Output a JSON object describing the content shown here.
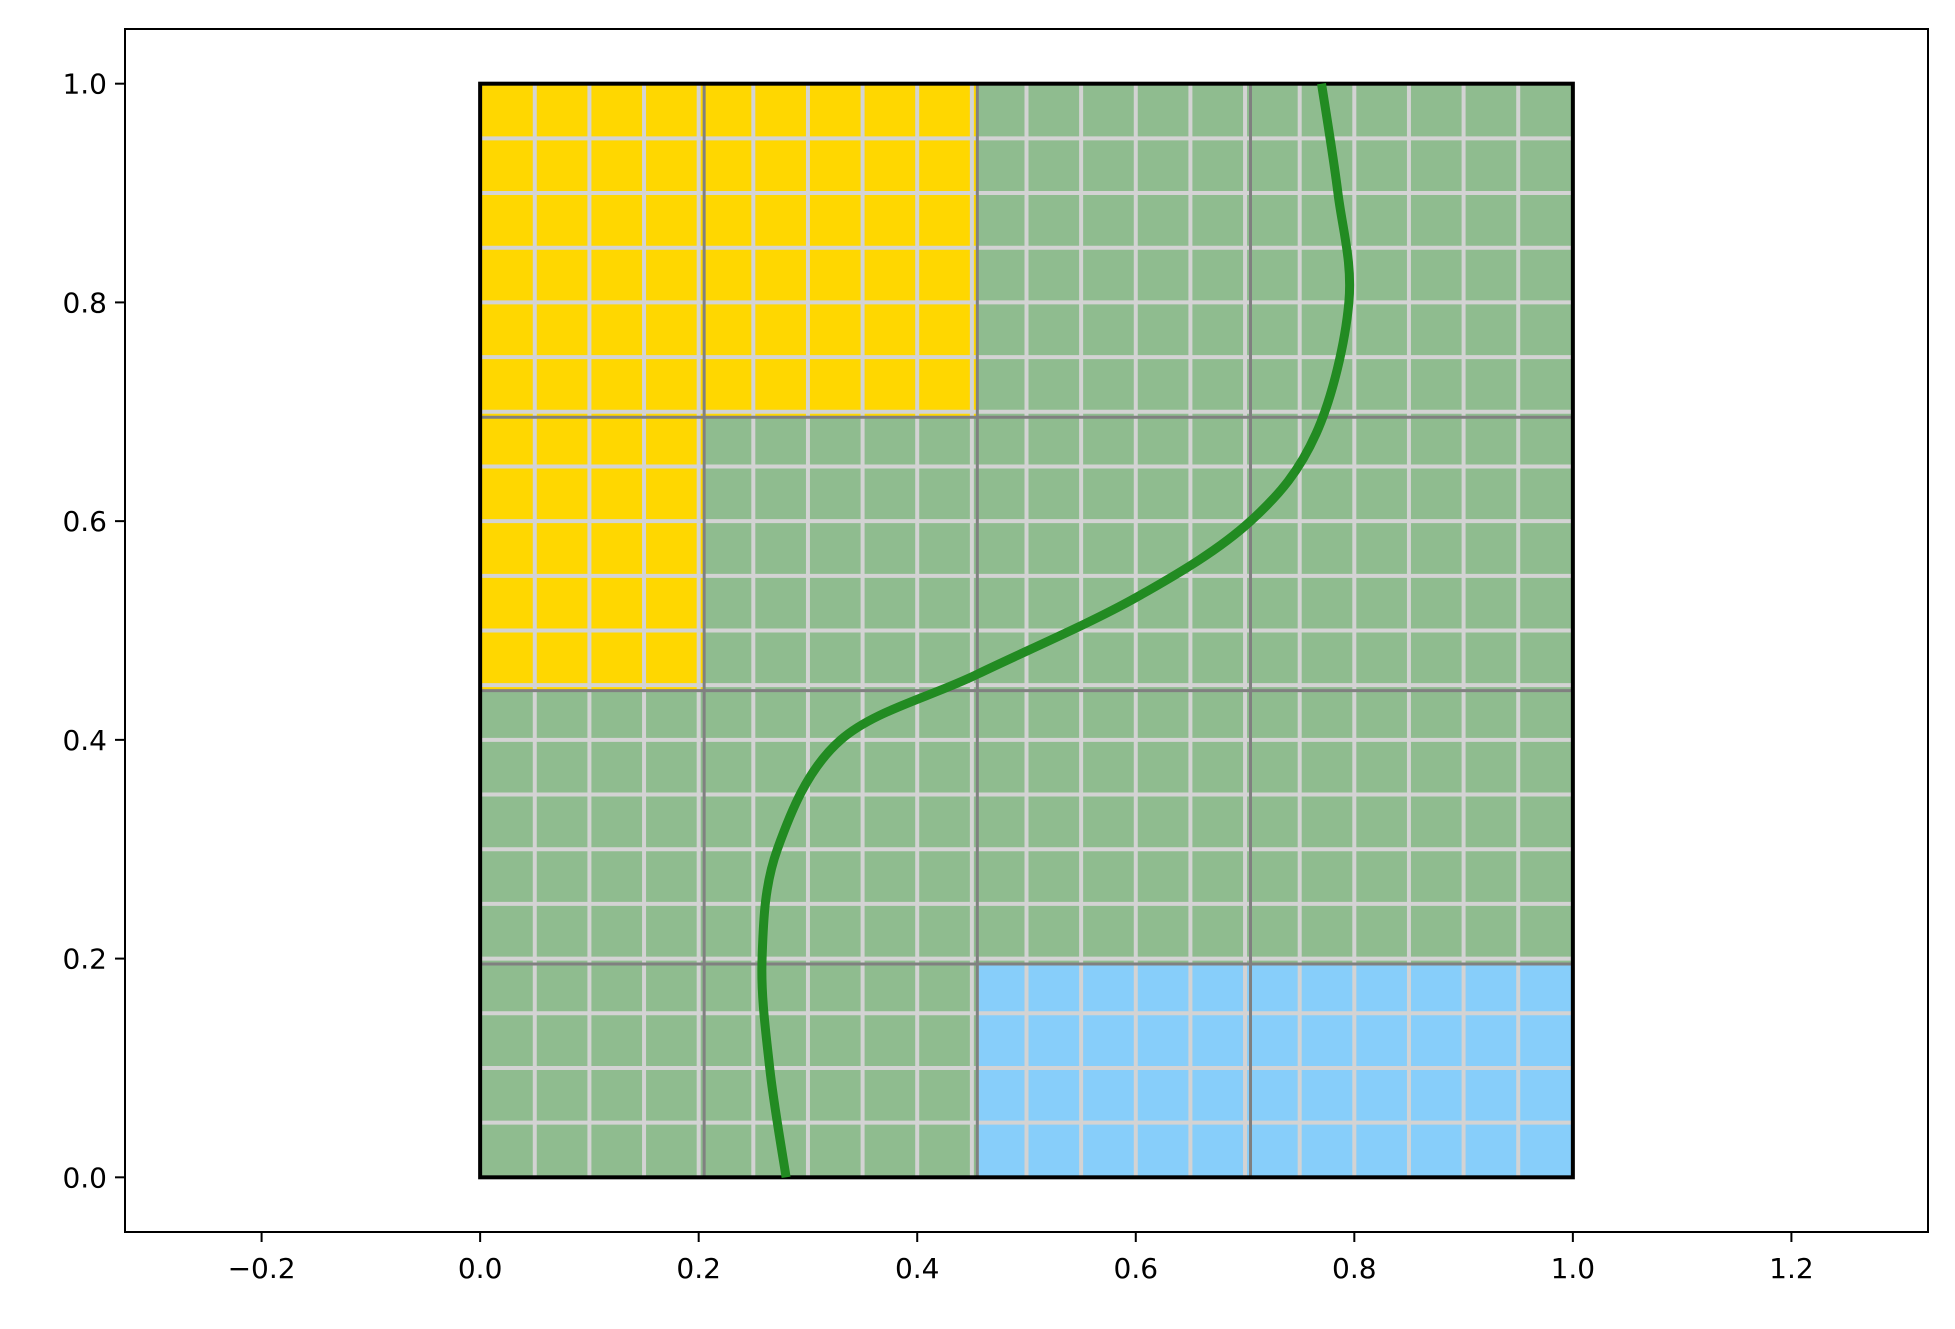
{
  "chart_data": {
    "type": "heatmap",
    "title": "",
    "xlabel": "",
    "ylabel": "",
    "xlim": [
      -0.325,
      1.325
    ],
    "ylim": [
      -0.05,
      1.05
    ],
    "x_ticks": [
      -0.2,
      0.0,
      0.2,
      0.4,
      0.6,
      0.8,
      1.0,
      1.2
    ],
    "x_tick_labels": [
      "−0.2",
      "0.0",
      "0.2",
      "0.4",
      "0.6",
      "0.8",
      "1.0",
      "1.2"
    ],
    "y_ticks": [
      0.0,
      0.2,
      0.4,
      0.6,
      0.8,
      1.0
    ],
    "y_tick_labels": [
      "0.0",
      "0.2",
      "0.4",
      "0.6",
      "0.8",
      "1.0"
    ],
    "grid": false,
    "domain": {
      "x": [
        0,
        1
      ],
      "y": [
        0,
        1
      ]
    },
    "coarse_x_edges": [
      0,
      0.205,
      0.455,
      0.705,
      1.0
    ],
    "coarse_y_edges": [
      0,
      0.195,
      0.445,
      0.695,
      1.0
    ],
    "fine_spacing": 0.05,
    "cells": [
      {
        "x": [
          0,
          0.205
        ],
        "y": [
          0,
          0.195
        ],
        "color": "#8fbc8f"
      },
      {
        "x": [
          0.205,
          0.455
        ],
        "y": [
          0,
          0.195
        ],
        "color": "#8fbc8f"
      },
      {
        "x": [
          0.455,
          0.705
        ],
        "y": [
          0,
          0.195
        ],
        "color": "#87cefa"
      },
      {
        "x": [
          0.705,
          1.0
        ],
        "y": [
          0,
          0.195
        ],
        "color": "#87cefa"
      },
      {
        "x": [
          0,
          0.205
        ],
        "y": [
          0.195,
          0.445
        ],
        "color": "#8fbc8f"
      },
      {
        "x": [
          0.205,
          0.455
        ],
        "y": [
          0.195,
          0.445
        ],
        "color": "#8fbc8f"
      },
      {
        "x": [
          0.455,
          0.705
        ],
        "y": [
          0.195,
          0.445
        ],
        "color": "#8fbc8f"
      },
      {
        "x": [
          0.705,
          1.0
        ],
        "y": [
          0.195,
          0.445
        ],
        "color": "#8fbc8f"
      },
      {
        "x": [
          0,
          0.205
        ],
        "y": [
          0.445,
          0.695
        ],
        "color": "#ffd700"
      },
      {
        "x": [
          0.205,
          0.455
        ],
        "y": [
          0.445,
          0.695
        ],
        "color": "#8fbc8f"
      },
      {
        "x": [
          0.455,
          0.705
        ],
        "y": [
          0.445,
          0.695
        ],
        "color": "#8fbc8f"
      },
      {
        "x": [
          0.705,
          1.0
        ],
        "y": [
          0.445,
          0.695
        ],
        "color": "#8fbc8f"
      },
      {
        "x": [
          0,
          0.205
        ],
        "y": [
          0.695,
          1.0
        ],
        "color": "#ffd700"
      },
      {
        "x": [
          0.205,
          0.455
        ],
        "y": [
          0.695,
          1.0
        ],
        "color": "#ffd700"
      },
      {
        "x": [
          0.455,
          0.705
        ],
        "y": [
          0.695,
          1.0
        ],
        "color": "#8fbc8f"
      },
      {
        "x": [
          0.705,
          1.0
        ],
        "y": [
          0.695,
          1.0
        ],
        "color": "#8fbc8f"
      }
    ],
    "curve": {
      "color": "#228b22",
      "points": [
        [
          0.28,
          0.0
        ],
        [
          0.265,
          0.1
        ],
        [
          0.258,
          0.2
        ],
        [
          0.272,
          0.3
        ],
        [
          0.33,
          0.4
        ],
        [
          0.455,
          0.46
        ],
        [
          0.6,
          0.53
        ],
        [
          0.705,
          0.6
        ],
        [
          0.765,
          0.68
        ],
        [
          0.795,
          0.8
        ],
        [
          0.785,
          0.9
        ],
        [
          0.77,
          1.0
        ]
      ]
    },
    "colors": {
      "yellow_region": "#ffd700",
      "green_region": "#8fbc8f",
      "blue_region": "#87cefa",
      "fine_grid": "#d3d3d3",
      "coarse_grid": "#808080",
      "boundary": "#000000",
      "curve": "#228b22"
    }
  }
}
